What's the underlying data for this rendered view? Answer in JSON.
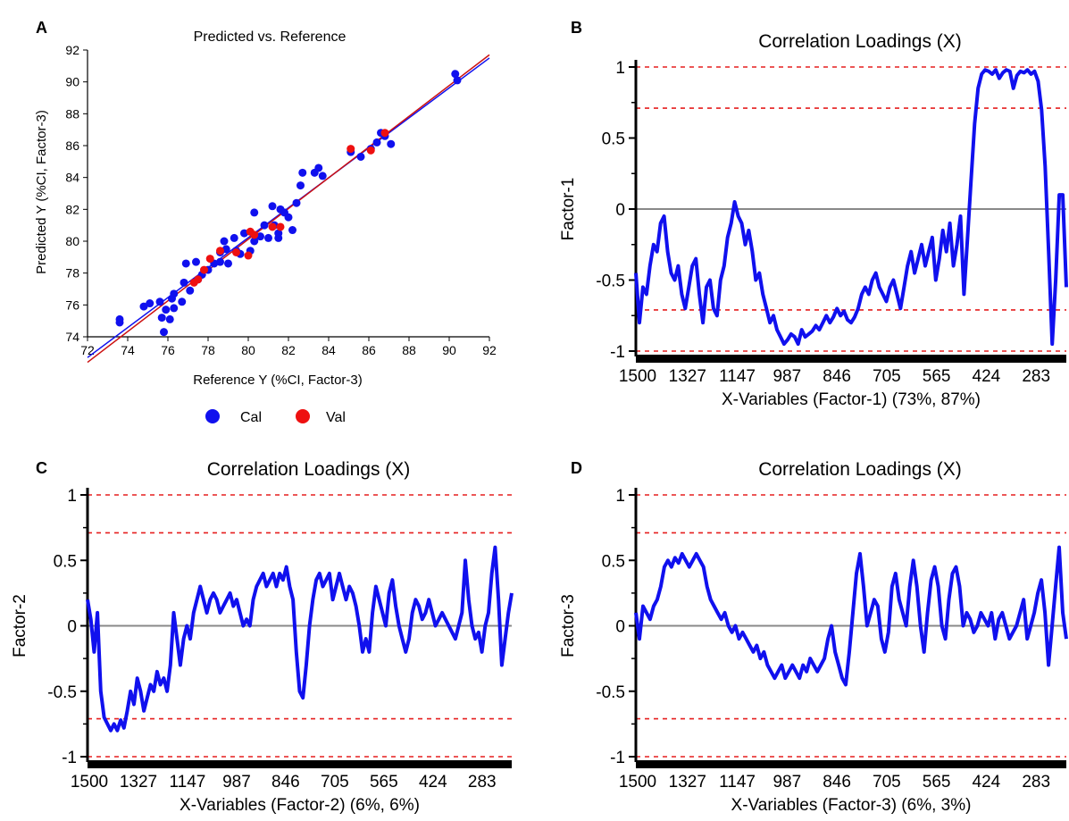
{
  "chart_data": [
    {
      "panel": "A",
      "type": "scatter",
      "title": "Predicted vs. Reference",
      "xlabel": "Reference Y (%CI, Factor-3)",
      "ylabel": "Predicted Y (%CI, Factor-3)",
      "xlim": [
        72,
        92
      ],
      "ylim": [
        74,
        92
      ],
      "xticks": [
        72,
        74,
        76,
        78,
        80,
        82,
        84,
        86,
        88,
        90,
        92
      ],
      "yticks": [
        74,
        76,
        78,
        80,
        82,
        84,
        86,
        88,
        90,
        92
      ],
      "legend_position": "bottom",
      "series": [
        {
          "name": "Cal",
          "color": "#1010ee",
          "points": [
            [
              73.6,
              74.9
            ],
            [
              73.6,
              75.1
            ],
            [
              74.8,
              75.9
            ],
            [
              75.1,
              76.1
            ],
            [
              75.6,
              76.2
            ],
            [
              75.7,
              75.2
            ],
            [
              75.8,
              74.3
            ],
            [
              75.9,
              75.7
            ],
            [
              76.1,
              75.1
            ],
            [
              76.2,
              76.4
            ],
            [
              76.3,
              75.8
            ],
            [
              76.3,
              76.7
            ],
            [
              76.7,
              76.2
            ],
            [
              76.8,
              77.4
            ],
            [
              76.9,
              78.6
            ],
            [
              77.1,
              76.9
            ],
            [
              77.4,
              78.7
            ],
            [
              77.5,
              77.6
            ],
            [
              77.7,
              77.9
            ],
            [
              78.0,
              78.2
            ],
            [
              78.3,
              78.6
            ],
            [
              78.6,
              78.7
            ],
            [
              78.6,
              79.3
            ],
            [
              78.8,
              80.0
            ],
            [
              78.9,
              79.5
            ],
            [
              79.0,
              78.6
            ],
            [
              79.3,
              80.2
            ],
            [
              79.4,
              79.4
            ],
            [
              79.6,
              79.2
            ],
            [
              79.8,
              80.5
            ],
            [
              80.1,
              79.4
            ],
            [
              80.3,
              81.8
            ],
            [
              80.3,
              80.0
            ],
            [
              80.6,
              80.3
            ],
            [
              80.8,
              81.0
            ],
            [
              81.0,
              80.2
            ],
            [
              81.2,
              82.2
            ],
            [
              81.3,
              81.0
            ],
            [
              81.5,
              80.2
            ],
            [
              81.5,
              80.5
            ],
            [
              81.6,
              82.0
            ],
            [
              81.8,
              81.8
            ],
            [
              82.0,
              81.5
            ],
            [
              82.2,
              80.7
            ],
            [
              82.4,
              82.4
            ],
            [
              82.6,
              83.5
            ],
            [
              82.7,
              84.3
            ],
            [
              83.3,
              84.3
            ],
            [
              83.5,
              84.6
            ],
            [
              83.7,
              84.1
            ],
            [
              85.1,
              85.6
            ],
            [
              85.6,
              85.3
            ],
            [
              86.1,
              85.8
            ],
            [
              86.4,
              86.2
            ],
            [
              86.6,
              86.8
            ],
            [
              86.8,
              86.6
            ],
            [
              87.1,
              86.1
            ],
            [
              90.3,
              90.5
            ],
            [
              90.4,
              90.1
            ]
          ]
        },
        {
          "name": "Val",
          "color": "#ee1010",
          "points": [
            [
              77.3,
              77.4
            ],
            [
              77.5,
              77.6
            ],
            [
              77.8,
              78.2
            ],
            [
              78.1,
              78.9
            ],
            [
              78.6,
              79.4
            ],
            [
              79.4,
              79.3
            ],
            [
              80.0,
              79.1
            ],
            [
              80.1,
              80.6
            ],
            [
              80.3,
              80.4
            ],
            [
              81.2,
              80.9
            ],
            [
              81.6,
              80.9
            ],
            [
              85.1,
              85.8
            ],
            [
              86.1,
              85.7
            ],
            [
              86.8,
              86.8
            ]
          ]
        }
      ],
      "fit_lines": [
        {
          "color": "#1010ee",
          "from": [
            72,
            72.7
          ],
          "to": [
            92,
            91.5
          ]
        },
        {
          "color": "#cc1010",
          "from": [
            72,
            72.4
          ],
          "to": [
            92,
            91.7
          ]
        }
      ]
    },
    {
      "panel": "B",
      "type": "line",
      "title": "Correlation Loadings (X)",
      "xlabel": "X-Variables (Factor-1) (73%, 87%)",
      "ylabel": "Factor-1",
      "xticks": [
        "1500",
        "1327",
        "1147",
        "987",
        "846",
        "705",
        "565",
        "424",
        "283"
      ],
      "yticks": [
        "-1",
        "-0.5",
        "0",
        "0.5",
        "1"
      ],
      "ylim": [
        -1,
        1
      ],
      "ref_lines": [
        1,
        0.71,
        -0.71,
        -1
      ],
      "series_color": "#1010ee",
      "values": [
        -0.45,
        -0.8,
        -0.55,
        -0.6,
        -0.4,
        -0.25,
        -0.3,
        -0.1,
        -0.05,
        -0.3,
        -0.45,
        -0.5,
        -0.4,
        -0.6,
        -0.7,
        -0.55,
        -0.4,
        -0.35,
        -0.6,
        -0.8,
        -0.55,
        -0.5,
        -0.7,
        -0.75,
        -0.5,
        -0.4,
        -0.2,
        -0.1,
        0.05,
        -0.05,
        -0.1,
        -0.25,
        -0.15,
        -0.3,
        -0.5,
        -0.45,
        -0.6,
        -0.7,
        -0.8,
        -0.75,
        -0.85,
        -0.9,
        -0.95,
        -0.92,
        -0.88,
        -0.9,
        -0.95,
        -0.85,
        -0.9,
        -0.88,
        -0.86,
        -0.82,
        -0.85,
        -0.8,
        -0.75,
        -0.8,
        -0.76,
        -0.7,
        -0.75,
        -0.72,
        -0.78,
        -0.8,
        -0.76,
        -0.7,
        -0.6,
        -0.55,
        -0.6,
        -0.5,
        -0.45,
        -0.55,
        -0.6,
        -0.65,
        -0.55,
        -0.5,
        -0.6,
        -0.7,
        -0.55,
        -0.4,
        -0.3,
        -0.45,
        -0.35,
        -0.25,
        -0.4,
        -0.3,
        -0.2,
        -0.5,
        -0.35,
        -0.15,
        -0.3,
        -0.1,
        -0.4,
        -0.25,
        -0.05,
        -0.6,
        -0.2,
        0.2,
        0.6,
        0.85,
        0.95,
        0.98,
        0.97,
        0.95,
        0.98,
        0.92,
        0.96,
        0.98,
        0.97,
        0.85,
        0.94,
        0.97,
        0.96,
        0.98,
        0.95,
        0.97,
        0.9,
        0.7,
        0.3,
        -0.3,
        -0.95,
        -0.5,
        0.1,
        0.1,
        -0.55
      ],
      "grid": false
    },
    {
      "panel": "C",
      "type": "line",
      "title": "Correlation Loadings (X)",
      "xlabel": "X-Variables (Factor-2) (6%, 6%)",
      "ylabel": "Factor-2",
      "xticks": [
        "1500",
        "1327",
        "1147",
        "987",
        "846",
        "705",
        "565",
        "424",
        "283"
      ],
      "yticks": [
        "-1",
        "-0.5",
        "0",
        "0.5",
        "1"
      ],
      "ylim": [
        -1,
        1
      ],
      "ref_lines": [
        1,
        0.71,
        -0.71,
        -1
      ],
      "series_color": "#1010ee",
      "values": [
        0.2,
        0.05,
        -0.2,
        0.1,
        -0.5,
        -0.7,
        -0.75,
        -0.8,
        -0.75,
        -0.8,
        -0.72,
        -0.78,
        -0.65,
        -0.5,
        -0.6,
        -0.4,
        -0.5,
        -0.65,
        -0.55,
        -0.45,
        -0.5,
        -0.35,
        -0.45,
        -0.4,
        -0.5,
        -0.3,
        0.1,
        -0.1,
        -0.3,
        -0.1,
        0.0,
        -0.1,
        0.1,
        0.2,
        0.3,
        0.2,
        0.1,
        0.2,
        0.25,
        0.2,
        0.1,
        0.15,
        0.2,
        0.25,
        0.15,
        0.2,
        0.1,
        0.0,
        0.05,
        0.0,
        0.2,
        0.3,
        0.35,
        0.4,
        0.3,
        0.35,
        0.4,
        0.3,
        0.4,
        0.35,
        0.45,
        0.3,
        0.2,
        -0.2,
        -0.5,
        -0.55,
        -0.3,
        0.0,
        0.2,
        0.35,
        0.4,
        0.3,
        0.35,
        0.4,
        0.2,
        0.3,
        0.4,
        0.3,
        0.2,
        0.3,
        0.25,
        0.15,
        0.0,
        -0.2,
        -0.1,
        -0.2,
        0.1,
        0.3,
        0.2,
        0.1,
        0.0,
        0.25,
        0.35,
        0.15,
        0.0,
        -0.1,
        -0.2,
        -0.1,
        0.1,
        0.2,
        0.15,
        0.05,
        0.1,
        0.2,
        0.1,
        0.0,
        0.05,
        0.1,
        0.05,
        0.0,
        -0.05,
        -0.1,
        0.0,
        0.1,
        0.5,
        0.2,
        0.0,
        -0.1,
        -0.05,
        -0.2,
        0.0,
        0.1,
        0.4,
        0.6,
        0.2,
        -0.3,
        -0.1,
        0.1,
        0.25
      ],
      "grid": false
    },
    {
      "panel": "D",
      "type": "line",
      "title": "Correlation Loadings (X)",
      "xlabel": "X-Variables (Factor-3) (6%, 3%)",
      "ylabel": "Factor-3",
      "xticks": [
        "1500",
        "1327",
        "1147",
        "987",
        "846",
        "705",
        "565",
        "424",
        "283"
      ],
      "yticks": [
        "-1",
        "-0.5",
        "0",
        "0.5",
        "1"
      ],
      "ylim": [
        -1,
        1
      ],
      "ref_lines": [
        1,
        0.71,
        -0.71,
        -1
      ],
      "series_color": "#1010ee",
      "values": [
        0.1,
        -0.1,
        0.15,
        0.1,
        0.05,
        0.15,
        0.2,
        0.3,
        0.45,
        0.5,
        0.45,
        0.52,
        0.48,
        0.55,
        0.5,
        0.45,
        0.5,
        0.55,
        0.5,
        0.45,
        0.3,
        0.2,
        0.15,
        0.1,
        0.05,
        0.1,
        0.0,
        -0.05,
        0.0,
        -0.1,
        -0.05,
        -0.1,
        -0.15,
        -0.2,
        -0.15,
        -0.25,
        -0.2,
        -0.3,
        -0.35,
        -0.4,
        -0.35,
        -0.3,
        -0.4,
        -0.35,
        -0.3,
        -0.35,
        -0.4,
        -0.3,
        -0.35,
        -0.25,
        -0.3,
        -0.35,
        -0.3,
        -0.25,
        -0.1,
        0.0,
        -0.2,
        -0.3,
        -0.4,
        -0.45,
        -0.2,
        0.1,
        0.4,
        0.55,
        0.3,
        0.0,
        0.1,
        0.2,
        0.15,
        -0.1,
        -0.2,
        -0.05,
        0.3,
        0.4,
        0.2,
        0.1,
        0.0,
        0.3,
        0.5,
        0.3,
        0.0,
        -0.2,
        0.1,
        0.35,
        0.45,
        0.3,
        0.0,
        -0.1,
        0.2,
        0.4,
        0.45,
        0.3,
        0.0,
        0.1,
        0.05,
        -0.05,
        0.0,
        0.1,
        0.05,
        0.0,
        0.1,
        -0.1,
        0.05,
        0.1,
        0.0,
        -0.1,
        -0.05,
        0.0,
        0.1,
        0.2,
        -0.1,
        0.0,
        0.1,
        0.25,
        0.35,
        0.1,
        -0.3,
        0.0,
        0.3,
        0.6,
        0.1,
        -0.1
      ],
      "grid": false
    }
  ]
}
